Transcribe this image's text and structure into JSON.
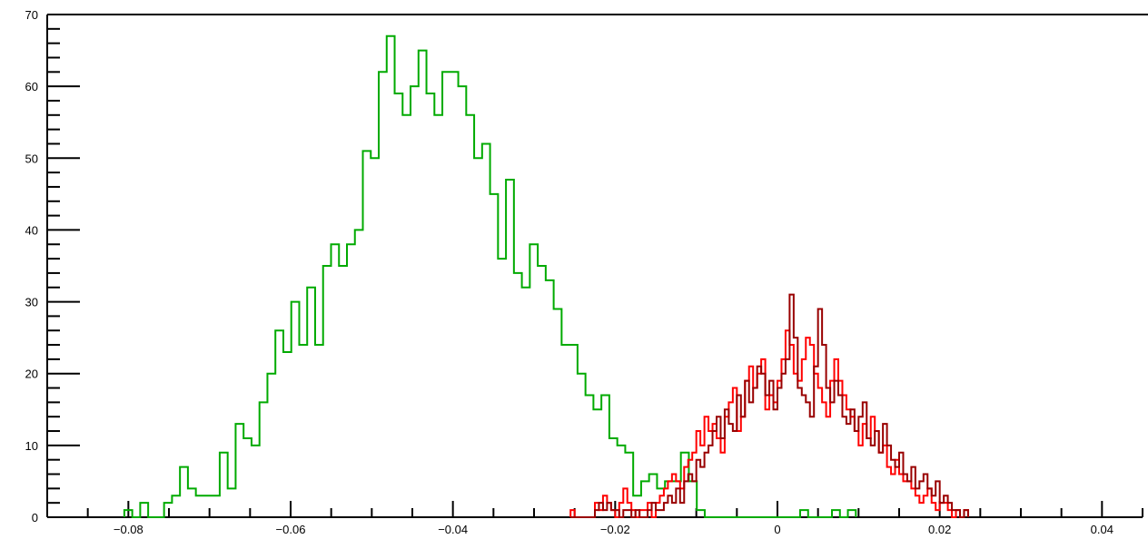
{
  "chart_data": {
    "type": "histogram",
    "title": "",
    "xlabel": "",
    "ylabel": "",
    "xlim": [
      -0.09,
      0.045
    ],
    "ylim": [
      0,
      70
    ],
    "grid": false,
    "legend": "none",
    "x_ticks": [
      {
        "value": -0.08,
        "label": "−0.08"
      },
      {
        "value": -0.06,
        "label": "−0.06"
      },
      {
        "value": -0.04,
        "label": "−0.04"
      },
      {
        "value": -0.02,
        "label": "−0.02"
      },
      {
        "value": 0,
        "label": "0"
      },
      {
        "value": 0.02,
        "label": "0.02"
      },
      {
        "value": 0.04,
        "label": "0.04"
      }
    ],
    "y_ticks": [
      {
        "value": 0,
        "label": "0"
      },
      {
        "value": 10,
        "label": "10"
      },
      {
        "value": 20,
        "label": "20"
      },
      {
        "value": 30,
        "label": "30"
      },
      {
        "value": 40,
        "label": "40"
      },
      {
        "value": 50,
        "label": "50"
      },
      {
        "value": 60,
        "label": "60"
      },
      {
        "value": 70,
        "label": "70"
      }
    ],
    "series": [
      {
        "color": "#00aa00",
        "x_start": -0.0805,
        "bin_width": 0.00098,
        "values": [
          1,
          0,
          2,
          0,
          0,
          2,
          3,
          7,
          4,
          3,
          3,
          3,
          9,
          4,
          13,
          11,
          10,
          16,
          20,
          26,
          23,
          30,
          24,
          32,
          24,
          35,
          38,
          35,
          38,
          40,
          51,
          50,
          62,
          67,
          59,
          56,
          60,
          65,
          59,
          56,
          62,
          62,
          60,
          56,
          50,
          52,
          45,
          36,
          47,
          34,
          32,
          38,
          35,
          33,
          29,
          24,
          24,
          20,
          17,
          15,
          17,
          11,
          10,
          9,
          3,
          5,
          6,
          4,
          5,
          5,
          9,
          5,
          1,
          0,
          0,
          0,
          0,
          0,
          0,
          0,
          0,
          0,
          0,
          0,
          0,
          1,
          0,
          0,
          0,
          1,
          0,
          1
        ]
      },
      {
        "color": "#ff0000",
        "x_start": -0.0255,
        "bin_width": 0.0005,
        "values": [
          1,
          0,
          0,
          0,
          0,
          0,
          2,
          1,
          3,
          2,
          1,
          0,
          2,
          4,
          2,
          1,
          0,
          1,
          1,
          2,
          0,
          2,
          3,
          4,
          5,
          6,
          5,
          4,
          7,
          8,
          9,
          12,
          10,
          14,
          12,
          13,
          11,
          9,
          14,
          16,
          18,
          12,
          14,
          19,
          21,
          18,
          20,
          22,
          15,
          17,
          16,
          19,
          22,
          26,
          24,
          20,
          19,
          22,
          25,
          24,
          20,
          18,
          16,
          14,
          19,
          22,
          19,
          17,
          15,
          14,
          12,
          10,
          13,
          11,
          14,
          12,
          9,
          10,
          7,
          6,
          8,
          6,
          5,
          5,
          4,
          3,
          2,
          3,
          4,
          2,
          1,
          2,
          2,
          1,
          0,
          1,
          0,
          1
        ]
      },
      {
        "color": "#990000",
        "x_start": -0.0255,
        "bin_width": 0.0005,
        "values": [
          0,
          0,
          0,
          0,
          0,
          0,
          1,
          2,
          1,
          2,
          1,
          1,
          0,
          1,
          1,
          0,
          1,
          0,
          0,
          1,
          2,
          1,
          1,
          2,
          3,
          2,
          4,
          2,
          5,
          6,
          5,
          8,
          7,
          9,
          10,
          12,
          14,
          11,
          15,
          13,
          12,
          17,
          14,
          19,
          16,
          18,
          21,
          20,
          17,
          19,
          15,
          18,
          20,
          22,
          31,
          25,
          18,
          17,
          16,
          14,
          21,
          29,
          24,
          18,
          16,
          19,
          17,
          14,
          13,
          15,
          12,
          14,
          16,
          11,
          10,
          12,
          9,
          13,
          10,
          8,
          7,
          9,
          6,
          5,
          7,
          4,
          5,
          6,
          4,
          3,
          5,
          2,
          3,
          2,
          1,
          1,
          0,
          1
        ]
      }
    ]
  }
}
